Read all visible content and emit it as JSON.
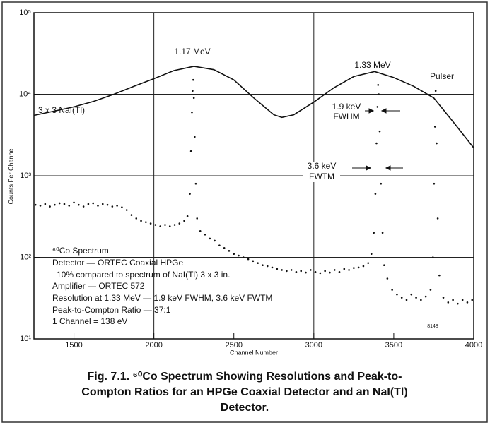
{
  "chart_data": {
    "type": "scatter",
    "x_label": "Channel Number",
    "y_label": "Counts Per Channel",
    "xlim": [
      1250,
      4000
    ],
    "xticks": [
      1500,
      2000,
      2500,
      3000,
      3500,
      4000
    ],
    "ylim": [
      10,
      100000
    ],
    "yticks": [
      {
        "value": 10,
        "label": "10¹"
      },
      {
        "value": 100,
        "label": "10²"
      },
      {
        "value": 1000,
        "label": "10³"
      },
      {
        "value": 10000,
        "label": "10⁴"
      },
      {
        "value": 100000,
        "label": "10⁵"
      }
    ],
    "log_y": true,
    "x_grid": [
      2000,
      3000
    ],
    "y_grid": [
      100,
      1000,
      10000
    ],
    "series": [
      {
        "name": "3 x 3 NaI(Tl)",
        "color": "#111111",
        "x": [
          1250,
          1375,
          1500,
          1625,
          1750,
          1875,
          2000,
          2125,
          2250,
          2375,
          2500,
          2625,
          2750,
          2800,
          2875,
          3000,
          3125,
          3250,
          3380,
          3500,
          3625,
          3750,
          3875,
          4000
        ],
        "values": [
          5500,
          6200,
          7000,
          8200,
          10000,
          12500,
          15500,
          19500,
          22000,
          20000,
          15000,
          9000,
          5600,
          5200,
          5600,
          8000,
          12000,
          16500,
          19000,
          16000,
          12500,
          9000,
          4500,
          2200
        ]
      },
      {
        "color": "#111111",
        "x": [
          1260,
          1290,
          1320,
          1350,
          1380,
          1410,
          1440,
          1470,
          1500,
          1530,
          1560,
          1590,
          1620,
          1650,
          1680,
          1710,
          1740,
          1770,
          1800,
          1830,
          1860,
          1890,
          1920,
          1950,
          1980,
          2010,
          2040,
          2070,
          2100,
          2130,
          2160,
          2190,
          2210,
          2225,
          2232,
          2238,
          2242,
          2246,
          2250,
          2255,
          2262,
          2270,
          2290,
          2320,
          2350,
          2380,
          2410,
          2440,
          2470,
          2500,
          2530,
          2560,
          2590,
          2620,
          2650,
          2680,
          2710,
          2740,
          2770,
          2800,
          2830,
          2860,
          2890,
          2920,
          2950,
          2980,
          3010,
          3040,
          3070,
          3100,
          3130,
          3160,
          3190,
          3220,
          3250,
          3280,
          3310,
          3340,
          3360,
          3375,
          3385,
          3392,
          3398,
          3402,
          3406,
          3412,
          3420,
          3430,
          3440,
          3460,
          3490,
          3520,
          3550,
          3580,
          3610,
          3640,
          3670,
          3700,
          3730,
          3745,
          3752,
          3758,
          3762,
          3768,
          3775,
          3785,
          3810,
          3840,
          3870,
          3900,
          3930,
          3960,
          3990
        ],
        "values": [
          440,
          430,
          450,
          420,
          440,
          460,
          450,
          430,
          470,
          440,
          420,
          450,
          460,
          430,
          450,
          440,
          420,
          430,
          410,
          380,
          330,
          300,
          280,
          270,
          260,
          250,
          240,
          250,
          240,
          250,
          260,
          280,
          320,
          600,
          2000,
          6000,
          11000,
          15000,
          9000,
          3000,
          800,
          300,
          210,
          190,
          170,
          160,
          140,
          130,
          120,
          110,
          105,
          100,
          95,
          90,
          85,
          80,
          78,
          75,
          72,
          70,
          68,
          70,
          66,
          68,
          65,
          70,
          66,
          64,
          68,
          65,
          70,
          66,
          72,
          70,
          74,
          75,
          78,
          85,
          110,
          200,
          600,
          2500,
          7000,
          13000,
          10000,
          3500,
          800,
          200,
          80,
          55,
          40,
          35,
          32,
          30,
          35,
          32,
          30,
          33,
          40,
          100,
          800,
          4000,
          11000,
          2500,
          300,
          60,
          32,
          28,
          30,
          27,
          30,
          28,
          30
        ]
      }
    ],
    "annotations": [
      "1.17 MeV",
      "1.33 MeV",
      "Pulser",
      "3 x 3 NaI(Tl)",
      "1.9 keV",
      "FWHM",
      "3.6 keV",
      "FWTM",
      "8148"
    ],
    "notes": [
      "⁶⁰Co Spectrum",
      "Detector — ORTEC Coaxial HPGe",
      "10% compared to spectrum of NaI(Tl) 3 x 3 in.",
      "Amplifier — ORTEC 572",
      "Resolution at 1.33 MeV — 1.9 keV FWHM, 3.6 keV FWTM",
      "Peak-to-Compton Ratio — 37:1",
      "1 Channel = 138 eV"
    ],
    "caption": [
      "Fig. 7.1. ⁶⁰Co Spectrum Showing Resolutions and Peak-to-",
      "Compton Ratios for an HPGe Coaxial Detector and an NaI(Tl)",
      "Detector."
    ]
  }
}
